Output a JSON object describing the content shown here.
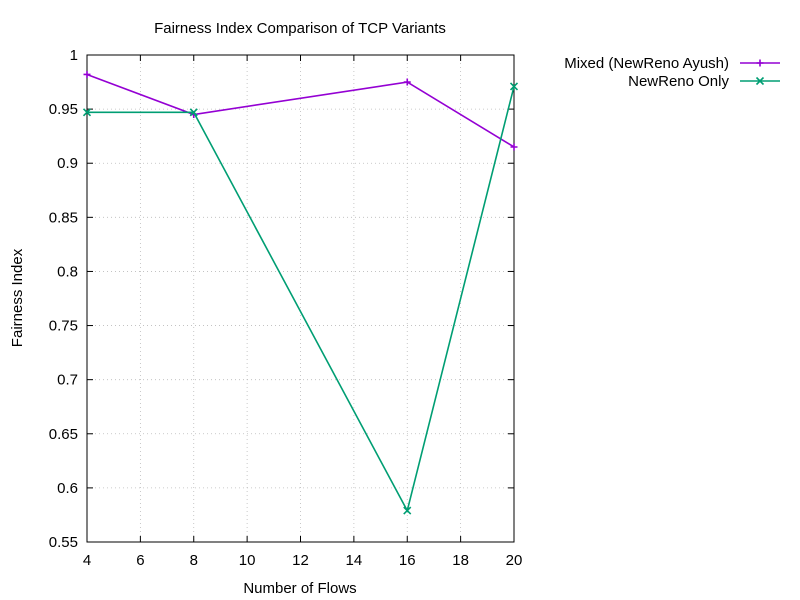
{
  "chart_data": {
    "type": "line",
    "title": "Fairness Index Comparison of TCP Variants",
    "xlabel": "Number of Flows",
    "ylabel": "Fairness Index",
    "xlim": [
      4,
      20
    ],
    "ylim": [
      0.55,
      1
    ],
    "xticks": [
      4,
      6,
      8,
      10,
      12,
      14,
      16,
      18,
      20
    ],
    "yticks": [
      0.55,
      0.6,
      0.65,
      0.7,
      0.75,
      0.8,
      0.85,
      0.9,
      0.95,
      1
    ],
    "ytick_labels": [
      "0.55",
      "0.6",
      "0.65",
      "0.7",
      "0.75",
      "0.8",
      "0.85",
      "0.9",
      "0.95",
      "1"
    ],
    "grid": true,
    "legend_position": "outside-top-right",
    "series": [
      {
        "name": "Mixed (NewReno  Ayush)",
        "color": "#9400d3",
        "marker": "plus",
        "x": [
          4,
          8,
          16,
          20
        ],
        "y": [
          0.982,
          0.945,
          0.975,
          0.915
        ]
      },
      {
        "name": "NewReno Only",
        "color": "#009e73",
        "marker": "cross",
        "x": [
          4,
          8,
          16,
          20
        ],
        "y": [
          0.947,
          0.947,
          0.579,
          0.971
        ]
      }
    ]
  }
}
